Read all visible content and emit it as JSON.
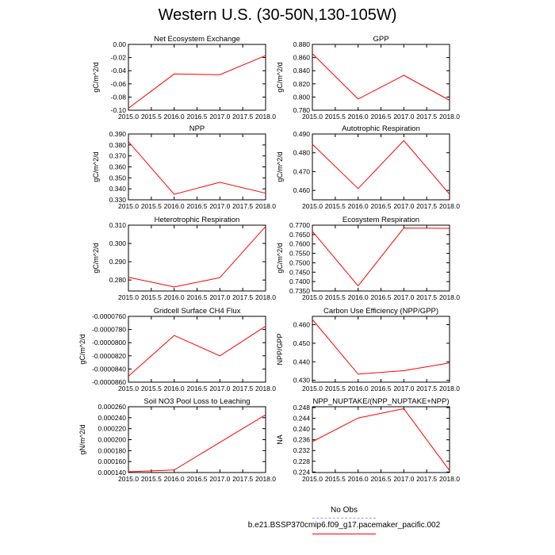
{
  "title": "Western U.S. (30-50N,130-105W)",
  "colors": {
    "series": "#ff0000",
    "obs": "#9999ff",
    "axis": "#000000"
  },
  "legend": {
    "obs_label": "No Obs",
    "model_label": "b.e21.BSSP370cmip6.f09_g17.pacemaker_pacific.002"
  },
  "chart_data": [
    {
      "type": "line",
      "title": "Net Ecosystem Exchange",
      "ylabel": "gC/m^2/d",
      "x": [
        2015,
        2016,
        2017,
        2018
      ],
      "values": [
        -0.097,
        -0.045,
        -0.046,
        -0.017
      ],
      "xlim": [
        2015,
        2018
      ],
      "ylim": [
        -0.1,
        0.0
      ],
      "xticks": [
        "2015.0",
        "2015.5",
        "2016.0",
        "2016.5",
        "2017.0",
        "2017.5",
        "2018.0"
      ],
      "yticks": [
        "-0.10",
        "-0.08",
        "-0.06",
        "-0.04",
        "-0.02",
        "0.00"
      ],
      "ytick_values": [
        -0.1,
        -0.08,
        -0.06,
        -0.04,
        -0.02,
        0.0
      ]
    },
    {
      "type": "line",
      "title": "GPP",
      "ylabel": "gC/m^2/d",
      "x": [
        2015,
        2016,
        2017,
        2018
      ],
      "values": [
        0.866,
        0.797,
        0.833,
        0.795
      ],
      "xlim": [
        2015,
        2018
      ],
      "ylim": [
        0.78,
        0.88
      ],
      "xticks": [
        "2015.0",
        "2015.5",
        "2016.0",
        "2016.5",
        "2017.0",
        "2017.5",
        "2018.0"
      ],
      "yticks": [
        "0.780",
        "0.800",
        "0.820",
        "0.840",
        "0.860",
        "0.880"
      ],
      "ytick_values": [
        0.78,
        0.8,
        0.82,
        0.84,
        0.86,
        0.88
      ]
    },
    {
      "type": "line",
      "title": "NPP",
      "ylabel": "gC/m^2/d",
      "x": [
        2015,
        2016,
        2017,
        2018
      ],
      "values": [
        0.383,
        0.335,
        0.346,
        0.336
      ],
      "xlim": [
        2015,
        2018
      ],
      "ylim": [
        0.33,
        0.39
      ],
      "xticks": [
        "2015.0",
        "2015.5",
        "2016.0",
        "2016.5",
        "2017.0",
        "2017.5",
        "2018.0"
      ],
      "yticks": [
        "0.330",
        "0.340",
        "0.350",
        "0.360",
        "0.370",
        "0.380",
        "0.390"
      ],
      "ytick_values": [
        0.33,
        0.34,
        0.35,
        0.36,
        0.37,
        0.38,
        0.39
      ]
    },
    {
      "type": "line",
      "title": "Autotrophic Respiration",
      "ylabel": "gC/m^2/d",
      "x": [
        2015,
        2016,
        2017,
        2018
      ],
      "values": [
        0.4845,
        0.461,
        0.4865,
        0.458
      ],
      "xlim": [
        2015,
        2018
      ],
      "ylim": [
        0.455,
        0.49
      ],
      "xticks": [
        "2015.0",
        "2015.5",
        "2016.0",
        "2016.5",
        "2017.0",
        "2017.5",
        "2018.0"
      ],
      "yticks": [
        "0.460",
        "0.470",
        "0.480",
        "0.490"
      ],
      "ytick_values": [
        0.46,
        0.47,
        0.48,
        0.49
      ]
    },
    {
      "type": "line",
      "title": "Heterotrophic Respiration",
      "ylabel": "gC/m^2/d",
      "x": [
        2015,
        2016,
        2017,
        2018
      ],
      "values": [
        0.2815,
        0.2762,
        0.2813,
        0.3093
      ],
      "xlim": [
        2015,
        2018
      ],
      "ylim": [
        0.274,
        0.31
      ],
      "xticks": [
        "2015.0",
        "2015.5",
        "2016.0",
        "2016.5",
        "2017.0",
        "2017.5",
        "2018.0"
      ],
      "yticks": [
        "0.280",
        "0.290",
        "0.300",
        "0.310"
      ],
      "ytick_values": [
        0.28,
        0.29,
        0.3,
        0.31
      ]
    },
    {
      "type": "line",
      "title": "Ecosystem Respiration",
      "ylabel": "gC/m^2/d",
      "x": [
        2015,
        2016,
        2017,
        2018
      ],
      "values": [
        0.7667,
        0.7377,
        0.7685,
        0.7683
      ],
      "xlim": [
        2015,
        2018
      ],
      "ylim": [
        0.735,
        0.77
      ],
      "xticks": [
        "2015.0",
        "2015.5",
        "2016.0",
        "2016.5",
        "2017.0",
        "2017.5",
        "2018.0"
      ],
      "yticks": [
        "0.7350",
        "0.7400",
        "0.7450",
        "0.7500",
        "0.7550",
        "0.7600",
        "0.7650",
        "0.7700"
      ],
      "ytick_values": [
        0.735,
        0.74,
        0.745,
        0.75,
        0.755,
        0.76,
        0.765,
        0.77
      ]
    },
    {
      "type": "line",
      "title": "Gridcell Surface CH4 Flux",
      "ylabel": "gC/m^2/d",
      "x": [
        2015,
        2016,
        2017,
        2018
      ],
      "values": [
        -8.51e-05,
        -7.89e-05,
        -8.2e-05,
        -7.75e-05
      ],
      "xlim": [
        2015,
        2018
      ],
      "ylim": [
        -8.6e-05,
        -7.6e-05
      ],
      "xticks": [
        "2015.0",
        "2015.5",
        "2016.0",
        "2016.5",
        "2017.0",
        "2017.5",
        "2018.0"
      ],
      "yticks": [
        "-0.0000860",
        "-0.0000840",
        "-0.0000820",
        "-0.0000800",
        "-0.0000780",
        "-0.0000760"
      ],
      "ytick_values": [
        -8.6e-05,
        -8.4e-05,
        -8.2e-05,
        -8e-05,
        -7.8e-05,
        -7.6e-05
      ]
    },
    {
      "type": "line",
      "title": "Carbon Use Efficiency (NPP/GPP)",
      "ylabel": "NPP/GPP",
      "x": [
        2015,
        2016,
        2017,
        2018
      ],
      "values": [
        0.4628,
        0.4333,
        0.4352,
        0.4394
      ],
      "xlim": [
        2015,
        2018
      ],
      "ylim": [
        0.429,
        0.4645
      ],
      "xticks": [
        "2015.0",
        "2015.5",
        "2016.0",
        "2016.5",
        "2017.0",
        "2017.5",
        "2018.0"
      ],
      "yticks": [
        "0.430",
        "0.440",
        "0.450",
        "0.460"
      ],
      "ytick_values": [
        0.43,
        0.44,
        0.45,
        0.46
      ]
    },
    {
      "type": "line",
      "title": "Soil NO3 Pool Loss to Leaching",
      "ylabel": "gN/m^2/d",
      "x": [
        2015,
        2016,
        2017,
        2018
      ],
      "values": [
        0.0001415,
        0.0001446,
        0.0001951,
        0.0002452
      ],
      "xlim": [
        2015,
        2018
      ],
      "ylim": [
        0.00014,
        0.00026
      ],
      "xticks": [
        "2015.0",
        "2015.5",
        "2016.0",
        "2016.5",
        "2017.0",
        "2017.5",
        "2018.0"
      ],
      "yticks": [
        "0.000140",
        "0.000160",
        "0.000180",
        "0.000200",
        "0.000220",
        "0.000240",
        "0.000260"
      ],
      "ytick_values": [
        0.00014,
        0.00016,
        0.00018,
        0.0002,
        0.00022,
        0.00024,
        0.00026
      ]
    },
    {
      "type": "line",
      "title": "NPP_NUPTAKE/(NPP_NUPTAKE+NPP)",
      "ylabel": "NA",
      "x": [
        2015,
        2016,
        2017,
        2018
      ],
      "values": [
        0.2353,
        0.2441,
        0.2476,
        0.2245
      ],
      "xlim": [
        2015,
        2018
      ],
      "ylim": [
        0.2238,
        0.2483
      ],
      "xticks": [
        "2015.0",
        "2015.5",
        "2016.0",
        "2016.5",
        "2017.0",
        "2017.5",
        "2018.0"
      ],
      "yticks": [
        "0.224",
        "0.228",
        "0.232",
        "0.236",
        "0.240",
        "0.244",
        "0.248"
      ],
      "ytick_values": [
        0.224,
        0.228,
        0.232,
        0.236,
        0.24,
        0.244,
        0.248
      ]
    }
  ]
}
